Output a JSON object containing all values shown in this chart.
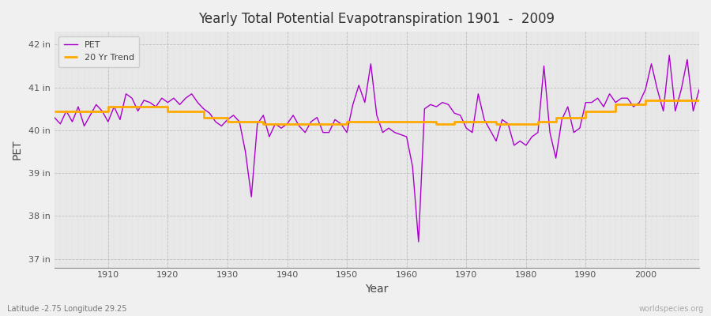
{
  "title": "Yearly Total Potential Evapotranspiration 1901  -  2009",
  "xlabel": "Year",
  "ylabel": "PET",
  "subtitle_left": "Latitude -2.75 Longitude 29.25",
  "subtitle_right": "worldspecies.org",
  "pet_color": "#aa00cc",
  "trend_color": "#ffaa00",
  "fig_bg_color": "#f0f0f0",
  "plot_bg_color": "#e8e8e8",
  "ylim": [
    36.8,
    42.3
  ],
  "yticks": [
    37,
    38,
    39,
    40,
    41,
    42
  ],
  "ytick_labels": [
    "37 in",
    "38 in",
    "39 in",
    "40 in",
    "41 in",
    "42 in"
  ],
  "xlim": [
    1901,
    2009
  ],
  "xticks": [
    1910,
    1920,
    1930,
    1940,
    1950,
    1960,
    1970,
    1980,
    1990,
    2000
  ],
  "years": [
    1901,
    1902,
    1903,
    1904,
    1905,
    1906,
    1907,
    1908,
    1909,
    1910,
    1911,
    1912,
    1913,
    1914,
    1915,
    1916,
    1917,
    1918,
    1919,
    1920,
    1921,
    1922,
    1923,
    1924,
    1925,
    1926,
    1927,
    1928,
    1929,
    1930,
    1931,
    1932,
    1933,
    1934,
    1935,
    1936,
    1937,
    1938,
    1939,
    1940,
    1941,
    1942,
    1943,
    1944,
    1945,
    1946,
    1947,
    1948,
    1949,
    1950,
    1951,
    1952,
    1953,
    1954,
    1955,
    1956,
    1957,
    1958,
    1959,
    1960,
    1961,
    1962,
    1963,
    1964,
    1965,
    1966,
    1967,
    1968,
    1969,
    1970,
    1971,
    1972,
    1973,
    1974,
    1975,
    1976,
    1977,
    1978,
    1979,
    1980,
    1981,
    1982,
    1983,
    1984,
    1985,
    1986,
    1987,
    1988,
    1989,
    1990,
    1991,
    1992,
    1993,
    1994,
    1995,
    1996,
    1997,
    1998,
    1999,
    2000,
    2001,
    2002,
    2003,
    2004,
    2005,
    2006,
    2007,
    2008,
    2009
  ],
  "pet_values": [
    40.3,
    40.15,
    40.45,
    40.2,
    40.55,
    40.1,
    40.35,
    40.6,
    40.45,
    40.2,
    40.55,
    40.25,
    40.85,
    40.75,
    40.45,
    40.7,
    40.65,
    40.55,
    40.75,
    40.65,
    40.75,
    40.6,
    40.75,
    40.85,
    40.65,
    40.5,
    40.4,
    40.2,
    40.1,
    40.25,
    40.35,
    40.2,
    39.5,
    38.45,
    40.15,
    40.35,
    39.85,
    40.15,
    40.05,
    40.15,
    40.35,
    40.1,
    39.95,
    40.2,
    40.3,
    39.95,
    39.95,
    40.25,
    40.15,
    39.95,
    40.6,
    41.05,
    40.65,
    41.55,
    40.35,
    39.95,
    40.05,
    39.95,
    39.9,
    39.85,
    39.15,
    37.4,
    40.5,
    40.6,
    40.55,
    40.65,
    40.6,
    40.4,
    40.35,
    40.05,
    39.95,
    40.85,
    40.25,
    40.0,
    39.75,
    40.25,
    40.15,
    39.65,
    39.75,
    39.65,
    39.85,
    39.95,
    41.5,
    39.95,
    39.35,
    40.25,
    40.55,
    39.95,
    40.05,
    40.65,
    40.65,
    40.75,
    40.55,
    40.85,
    40.65,
    40.75,
    40.75,
    40.55,
    40.65,
    40.95,
    41.55,
    40.95,
    40.45,
    41.75,
    40.45,
    40.95,
    41.65,
    40.45,
    40.95
  ],
  "trend_years": [
    1901,
    1910,
    1910,
    1920,
    1920,
    1926,
    1926,
    1930,
    1930,
    1936,
    1936,
    1950,
    1950,
    1965,
    1965,
    1968,
    1968,
    1975,
    1975,
    1982,
    1982,
    1985,
    1985,
    1990,
    1990,
    1995,
    1995,
    2000,
    2000,
    2009
  ],
  "trend_vals": [
    40.45,
    40.45,
    40.55,
    40.55,
    40.45,
    40.45,
    40.3,
    40.3,
    40.2,
    40.2,
    40.15,
    40.15,
    40.2,
    40.2,
    40.15,
    40.15,
    40.2,
    40.2,
    40.15,
    40.15,
    40.2,
    40.2,
    40.3,
    40.3,
    40.45,
    40.45,
    40.6,
    40.6,
    40.7,
    40.7
  ]
}
